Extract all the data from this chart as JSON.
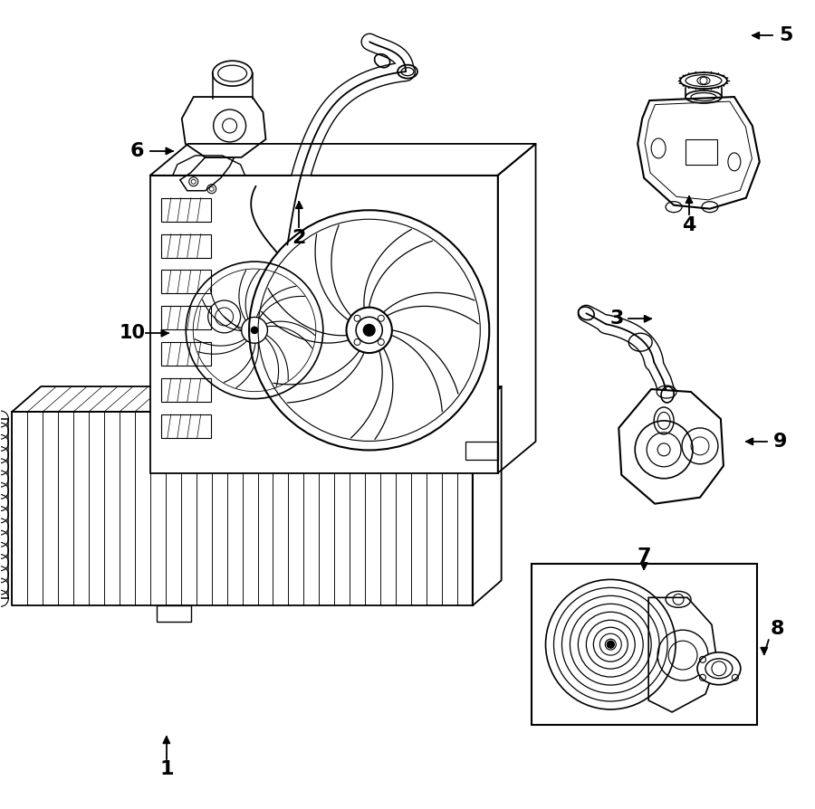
{
  "bg_color": "#ffffff",
  "line_color": "#000000",
  "fig_width": 9.0,
  "fig_height": 8.94
}
